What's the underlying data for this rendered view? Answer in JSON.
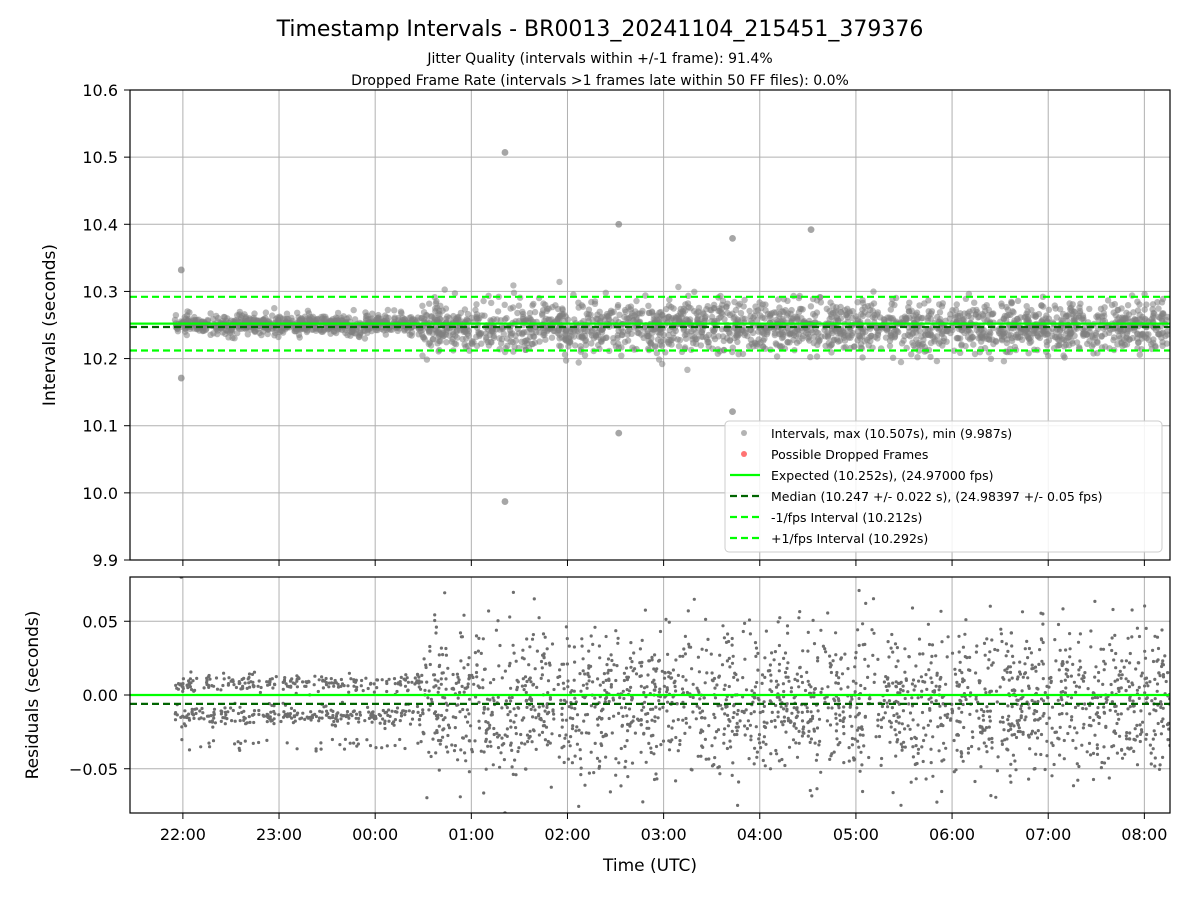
{
  "figure": {
    "title": "Timestamp Intervals - BR0013_20241104_215451_379376",
    "subtitle_lines": [
      "Jitter Quality (intervals within +/-1 frame): 91.4%",
      "Dropped Frame Rate (intervals >1 frames late within 50 FF files): 0.0%"
    ]
  },
  "colors": {
    "points": "#808080",
    "dropped": "#ff0000",
    "expected": "#00ff00",
    "median": "#006400",
    "interval": "#00ff00",
    "grid": "#b0b0b0"
  },
  "chart_data": [
    {
      "type": "scatter",
      "ylabel": "Intervals (seconds)",
      "ylim": [
        9.9,
        10.6
      ],
      "yticks": [
        9.9,
        10.0,
        10.1,
        10.2,
        10.3,
        10.4,
        10.5,
        10.6
      ],
      "ytick_labels": [
        "9.9",
        "10.0",
        "10.1",
        "10.2",
        "10.3",
        "10.4",
        "10.5",
        "10.6"
      ],
      "xlim": [
        "21:27",
        "08:16"
      ],
      "grid": true,
      "legend_position": "lower-right",
      "legend": [
        {
          "label": "Intervals, max (10.507s), min (9.987s)",
          "kind": "dot-gray"
        },
        {
          "label": "Possible Dropped Frames",
          "kind": "dot-red"
        },
        {
          "label": "Expected (10.252s), (24.97000 fps)",
          "kind": "line-expected"
        },
        {
          "label": "Median (10.247 +/- 0.022 s), (24.98397 +/- 0.05 fps)",
          "kind": "line-median"
        },
        {
          "label": "-1/fps Interval (10.212s)",
          "kind": "line-minus"
        },
        {
          "label": "+1/fps Interval (10.292s)",
          "kind": "line-plus"
        }
      ],
      "reference_lines": {
        "expected": 10.252,
        "median": 10.247,
        "minus_interval": 10.212,
        "plus_interval": 10.292
      },
      "series": [
        {
          "name": "Intervals, max (10.507s), min (9.987s)",
          "profile": [
            {
              "from": "21:55",
              "to": "00:29",
              "center": 10.25,
              "spread": 0.01
            },
            {
              "from": "00:29",
              "to": "08:16",
              "center": 10.247,
              "spread": 0.025
            }
          ],
          "outliers": [
            {
              "x": "21:59",
              "y": 10.332
            },
            {
              "x": "21:59",
              "y": 10.171
            },
            {
              "x": "01:21",
              "y": 10.507
            },
            {
              "x": "01:21",
              "y": 9.987
            },
            {
              "x": "02:32",
              "y": 10.4
            },
            {
              "x": "02:32",
              "y": 10.089
            },
            {
              "x": "03:43",
              "y": 10.379
            },
            {
              "x": "03:43",
              "y": 10.121
            },
            {
              "x": "04:32",
              "y": 10.392
            }
          ]
        },
        {
          "name": "Possible Dropped Frames",
          "points": []
        }
      ]
    },
    {
      "type": "scatter",
      "xlabel": "Time (UTC)",
      "ylabel": "Residuals (seconds)",
      "ylim": [
        -0.08,
        0.08
      ],
      "yticks": [
        -0.05,
        0.0,
        0.05
      ],
      "ytick_labels": [
        "−0.05",
        "0.00",
        "0.05"
      ],
      "xlim": [
        "21:27",
        "08:16"
      ],
      "xticks": [
        "22:00",
        "23:00",
        "00:00",
        "01:00",
        "02:00",
        "03:00",
        "04:00",
        "05:00",
        "06:00",
        "07:00",
        "08:00"
      ],
      "grid": true,
      "reference_lines": {
        "expected": 0.0,
        "median": -0.006
      },
      "series": [
        {
          "name": "Residuals",
          "profile": [
            {
              "from": "21:55",
              "to": "00:29",
              "bands": [
                0.008,
                -0.014
              ],
              "spread": 0.003
            },
            {
              "from": "00:29",
              "to": "08:16",
              "center": -0.005,
              "spread": 0.025
            }
          ],
          "outliers": [
            {
              "x": "21:59",
              "y": 0.08
            },
            {
              "x": "01:21",
              "y": -0.08
            }
          ]
        }
      ]
    }
  ]
}
